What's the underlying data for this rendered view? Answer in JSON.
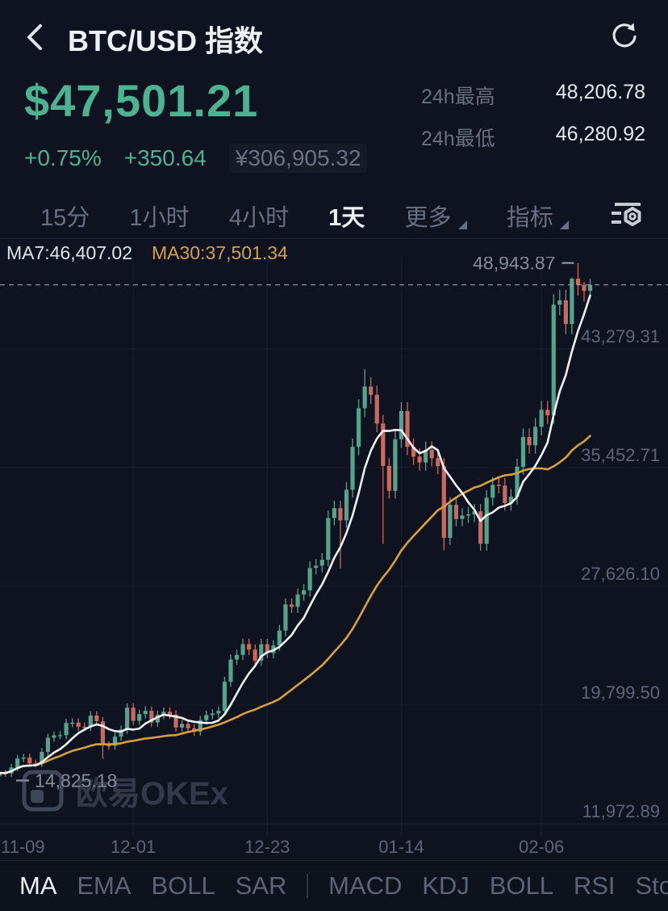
{
  "header": {
    "title": "BTC/USD 指数"
  },
  "price_panel": {
    "price": "$47,501.21",
    "change_percent": "+0.75%",
    "change_abs": "+350.64",
    "cny_value": "¥306,905.32",
    "stats": [
      {
        "label": "24h最高",
        "value": "48,206.78"
      },
      {
        "label": "24h最低",
        "value": "46,280.92"
      }
    ]
  },
  "timeframe_bar": {
    "tabs": [
      {
        "label": "15分",
        "active": false,
        "dropdown": false
      },
      {
        "label": "1小时",
        "active": false,
        "dropdown": false
      },
      {
        "label": "4小时",
        "active": false,
        "dropdown": false
      },
      {
        "label": "1天",
        "active": true,
        "dropdown": false
      },
      {
        "label": "更多",
        "active": false,
        "dropdown": true
      },
      {
        "label": "指标",
        "active": false,
        "dropdown": true
      }
    ]
  },
  "ma_legend": {
    "ma7": "MA7:46,407.02",
    "ma30": "MA30:37,501.34"
  },
  "watermark": {
    "text": "欧易OKEx"
  },
  "indicator_bar": {
    "items": [
      {
        "label": "MA",
        "active": true
      },
      {
        "label": "EMA",
        "active": false
      },
      {
        "label": "BOLL",
        "active": false
      },
      {
        "label": "SAR",
        "active": false
      },
      {
        "divider": true
      },
      {
        "label": "MACD",
        "active": false
      },
      {
        "label": "KDJ",
        "active": false
      },
      {
        "label": "BOLL",
        "active": false
      },
      {
        "label": "RSI",
        "active": false
      },
      {
        "label": "Sto",
        "active": false
      }
    ]
  },
  "chart_data": {
    "type": "candlestick",
    "title": "BTC/USD index daily candles with MA7 and MA30 overlays",
    "colors": {
      "up": "#56a28c",
      "down": "#c96960",
      "ma7": "#eef1f4",
      "ma30": "#d7a03e",
      "grid": "rgba(255,255,255,0.05)",
      "axis_text": "#5d6577",
      "last_price_line": "#99a0ac",
      "marker_text": "#848c9b"
    },
    "y_axis": {
      "labels": [
        {
          "text": "43,279.31",
          "price": 43279.31
        },
        {
          "text": "35,452.71",
          "price": 35452.71
        },
        {
          "text": "27,626.10",
          "price": 27626.1
        },
        {
          "text": "19,799.50",
          "price": 19799.5
        },
        {
          "text": "11,972.89",
          "price": 11972.89
        }
      ]
    },
    "x_labels": [
      {
        "text": "11-09",
        "index": 0
      },
      {
        "text": "12-01",
        "index": 22
      },
      {
        "text": "12-23",
        "index": 44
      },
      {
        "text": "01-14",
        "index": 66
      },
      {
        "text": "02-06",
        "index": 89
      }
    ],
    "high_marker": {
      "text": "48,943.87",
      "price": 48943.87,
      "index": 95
    },
    "low_marker": {
      "text": "14,825.18",
      "price": 14825.18,
      "index": 0
    },
    "last_price": 47501.21,
    "overlays": [
      {
        "name": "MA7",
        "period": 7
      },
      {
        "name": "MA30",
        "period": 30
      }
    ],
    "candles": [
      [
        15100,
        15558,
        14825.18,
        15328
      ],
      [
        15328,
        15527,
        15068,
        15297
      ],
      [
        15297,
        15919,
        15068,
        15684
      ],
      [
        15684,
        16520,
        15449,
        16276
      ],
      [
        16276,
        16584,
        16032,
        16339
      ],
      [
        16339,
        16584,
        15718,
        15957
      ],
      [
        15957,
        16196,
        15716,
        15955
      ],
      [
        15955,
        16964,
        15716,
        16713
      ],
      [
        16713,
        17910,
        16462,
        17645
      ],
      [
        17645,
        18071,
        17380,
        17804
      ],
      [
        17804,
        18084,
        17537,
        17817
      ],
      [
        17817,
        18900,
        17550,
        18621
      ],
      [
        18621,
        18922,
        18342,
        18642
      ],
      [
        18642,
        18922,
        18094,
        18370
      ],
      [
        18370,
        18646,
        18090,
        18365
      ],
      [
        18365,
        19394,
        18090,
        19107
      ],
      [
        19107,
        19394,
        18448,
        18729
      ],
      [
        18729,
        19010,
        16250,
        17153
      ],
      [
        17153,
        17410,
        16851,
        17108
      ],
      [
        17108,
        17985,
        16851,
        17719
      ],
      [
        17719,
        18451,
        17453,
        18178
      ],
      [
        18178,
        19919,
        17905,
        19625
      ],
      [
        19625,
        19919,
        18483,
        18764
      ],
      [
        18764,
        19492,
        18483,
        19204
      ],
      [
        19204,
        19713,
        18916,
        19422
      ],
      [
        19422,
        19713,
        18370,
        18650
      ],
      [
        18650,
        19434,
        18370,
        19147
      ],
      [
        19147,
        19649,
        18860,
        19359
      ],
      [
        19359,
        19649,
        18879,
        19166
      ],
      [
        19166,
        19453,
        18045,
        18320
      ],
      [
        18320,
        18831,
        18045,
        18553
      ],
      [
        18553,
        18831,
        17990,
        18264
      ],
      [
        18264,
        18538,
        17787,
        18058
      ],
      [
        18058,
        19085,
        17787,
        18803
      ],
      [
        18803,
        19431,
        18521,
        19144
      ],
      [
        19144,
        19535,
        18857,
        19246
      ],
      [
        19246,
        19708,
        18958,
        19417
      ],
      [
        19417,
        21655,
        19126,
        21335
      ],
      [
        21335,
        23139,
        21015,
        22797
      ],
      [
        22797,
        23454,
        22455,
        23107
      ],
      [
        23107,
        24178,
        22760,
        23821
      ],
      [
        23821,
        24178,
        23103,
        23455
      ],
      [
        23455,
        23807,
        22378,
        22719
      ],
      [
        22719,
        24167,
        22378,
        23810
      ],
      [
        23810,
        24167,
        22884,
        23232
      ],
      [
        23232,
        24085,
        22884,
        23729
      ],
      [
        23729,
        25083,
        23373,
        24712
      ],
      [
        24712,
        26834,
        24341,
        26437
      ],
      [
        26437,
        26834,
        25878,
        26272
      ],
      [
        26272,
        27490,
        25878,
        27084
      ],
      [
        27084,
        27772,
        26678,
        27362
      ],
      [
        27362,
        29273,
        26952,
        28840
      ],
      [
        28840,
        29425,
        28407,
        28990
      ],
      [
        28990,
        29815,
        28555,
        29374
      ],
      [
        29374,
        32609,
        28933,
        32127
      ],
      [
        32127,
        33274,
        31645,
        32782
      ],
      [
        32782,
        33274,
        28800,
        31971
      ],
      [
        31971,
        34502,
        31491,
        33992
      ],
      [
        33992,
        37376,
        33482,
        36824
      ],
      [
        36824,
        39962,
        36272,
        39371
      ],
      [
        39371,
        41950,
        38780,
        40797
      ],
      [
        40797,
        41409,
        39650,
        40254
      ],
      [
        40254,
        40858,
        37781,
        38356
      ],
      [
        38356,
        38931,
        30420,
        35566
      ],
      [
        35566,
        36099,
        33413,
        33922
      ],
      [
        33922,
        37876,
        33413,
        37316
      ],
      [
        37316,
        39775,
        36756,
        39187
      ],
      [
        39187,
        39775,
        36273,
        36825
      ],
      [
        36825,
        37377,
        35635,
        36178
      ],
      [
        36178,
        36721,
        35254,
        35791
      ],
      [
        35791,
        37179,
        35254,
        36630
      ],
      [
        36630,
        37179,
        35528,
        36069
      ],
      [
        36069,
        36610,
        35014,
        35547
      ],
      [
        35547,
        36080,
        30000,
        30825
      ],
      [
        30825,
        33500,
        30363,
        33005
      ],
      [
        33005,
        33500,
        31586,
        32067
      ],
      [
        32067,
        32773,
        31586,
        32289
      ],
      [
        32289,
        32852,
        31804,
        32366
      ],
      [
        32366,
        33058,
        31880,
        32569
      ],
      [
        32569,
        33058,
        29976,
        30432
      ],
      [
        30432,
        33968,
        29976,
        33466
      ],
      [
        33466,
        34831,
        32964,
        34316
      ],
      [
        34316,
        34831,
        33755,
        34269
      ],
      [
        34269,
        34783,
        32617,
        33114
      ],
      [
        33114,
        34040,
        32617,
        33537
      ],
      [
        33537,
        36043,
        33034,
        35510
      ],
      [
        35510,
        38034,
        34977,
        37472
      ],
      [
        37472,
        38034,
        36372,
        36926
      ],
      [
        36926,
        38716,
        36372,
        38144
      ],
      [
        38144,
        39855,
        37572,
        39266
      ],
      [
        39266,
        39855,
        38319,
        38903
      ],
      [
        38903,
        46889,
        38319,
        46196
      ],
      [
        46196,
        47178,
        45499,
        46481
      ],
      [
        46481,
        47178,
        44244,
        44918
      ],
      [
        44918,
        47978,
        44244,
        47909
      ],
      [
        47909,
        48943.87,
        46791,
        47504
      ],
      [
        47504,
        47700,
        46399,
        47105
      ],
      [
        47105,
        47900,
        46600,
        47501.21
      ]
    ]
  }
}
